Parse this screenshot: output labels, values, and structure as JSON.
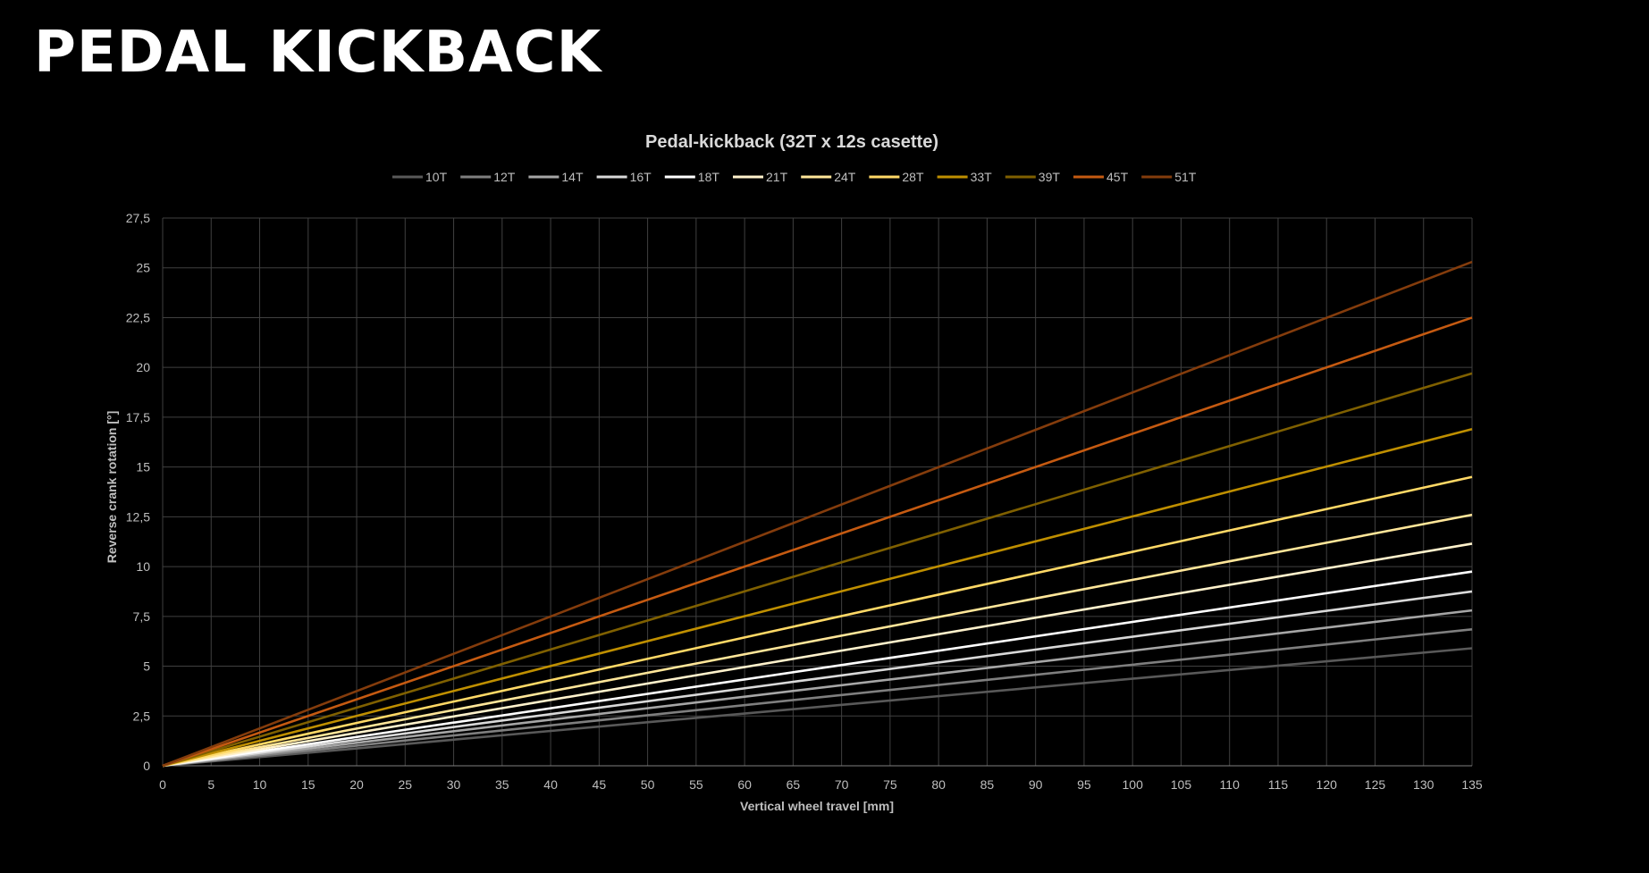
{
  "page": {
    "title": "PEDAL KICKBACK"
  },
  "chart_data": {
    "type": "line",
    "title": "Pedal-kickback (32T x 12s casette)",
    "xlabel": "Vertical wheel travel [mm]",
    "ylabel": "Reverse crank rotation [°]",
    "xlim": [
      0,
      135
    ],
    "ylim": [
      0,
      27.5
    ],
    "x_ticks": [
      "0",
      "5",
      "10",
      "15",
      "20",
      "25",
      "30",
      "35",
      "40",
      "45",
      "50",
      "55",
      "60",
      "65",
      "70",
      "75",
      "80",
      "85",
      "90",
      "95",
      "100",
      "105",
      "110",
      "115",
      "120",
      "125",
      "130",
      "135"
    ],
    "y_ticks": [
      "0",
      "2,5",
      "5",
      "7,5",
      "10",
      "12,5",
      "15",
      "17,5",
      "20",
      "22,5",
      "25",
      "27,5"
    ],
    "grid": true,
    "legend_position": "top-center",
    "x": [
      0,
      135
    ],
    "series": [
      {
        "name": "10T",
        "color": "#595959",
        "values": [
          0,
          5.9
        ]
      },
      {
        "name": "12T",
        "color": "#7f7f7f",
        "values": [
          0,
          6.85
        ]
      },
      {
        "name": "14T",
        "color": "#a6a6a6",
        "values": [
          0,
          7.8
        ]
      },
      {
        "name": "16T",
        "color": "#d9d9d9",
        "values": [
          0,
          8.75
        ]
      },
      {
        "name": "18T",
        "color": "#ffffff",
        "values": [
          0,
          9.75
        ]
      },
      {
        "name": "21T",
        "color": "#fff2cc",
        "values": [
          0,
          11.15
        ]
      },
      {
        "name": "24T",
        "color": "#ffe699",
        "values": [
          0,
          12.6
        ]
      },
      {
        "name": "28T",
        "color": "#ffd966",
        "values": [
          0,
          14.5
        ]
      },
      {
        "name": "33T",
        "color": "#bf8f00",
        "values": [
          0,
          16.9
        ]
      },
      {
        "name": "39T",
        "color": "#7f6000",
        "values": [
          0,
          19.7
        ]
      },
      {
        "name": "45T",
        "color": "#c55a11",
        "values": [
          0,
          22.5
        ]
      },
      {
        "name": "51T",
        "color": "#843c0c",
        "values": [
          0,
          25.3
        ]
      }
    ]
  }
}
